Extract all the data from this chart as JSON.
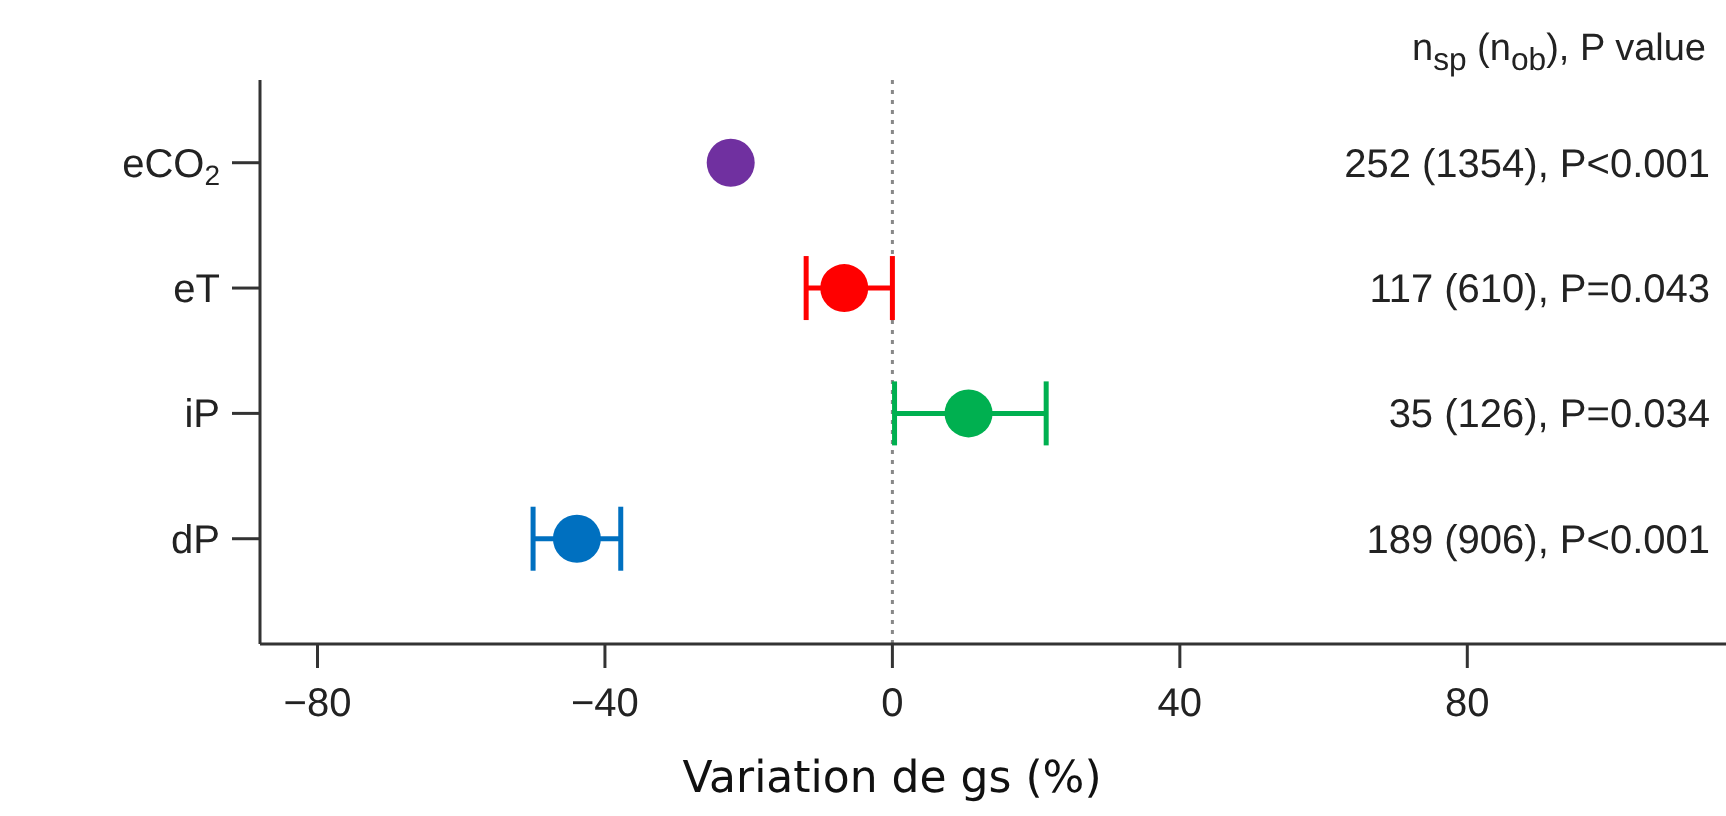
{
  "chart_data": {
    "type": "scatter",
    "orientation": "horizontal",
    "xlabel": "Variation de gs (%)",
    "categories": [
      "eCO$_{2}$",
      "eT",
      "iP",
      "dP"
    ],
    "values": [
      -22.5,
      -6.7,
      10.6,
      -43.9
    ],
    "colors": [
      "#7030a0",
      "#ff0000",
      "#00b050",
      "#0070c0"
    ],
    "errors": [
      null,
      [
        -12,
        0
      ],
      [
        0.3,
        21.4
      ],
      [
        -50,
        -37.8
      ]
    ],
    "xlim": [
      -88,
      116
    ],
    "xticks": [
      -80,
      -40,
      0,
      40,
      80
    ],
    "ref_lines": [
      {
        "axis": "x",
        "value": 0,
        "line_style": "dotted",
        "color": "#888888"
      }
    ],
    "annotations": [
      "n$_{sp}$ (n$_{ob}$), P value",
      "252 (1354), P<0.001",
      "117 (610), P=0.043",
      "35 (126), P=0.034",
      "189 (906), P<0.001"
    ]
  }
}
